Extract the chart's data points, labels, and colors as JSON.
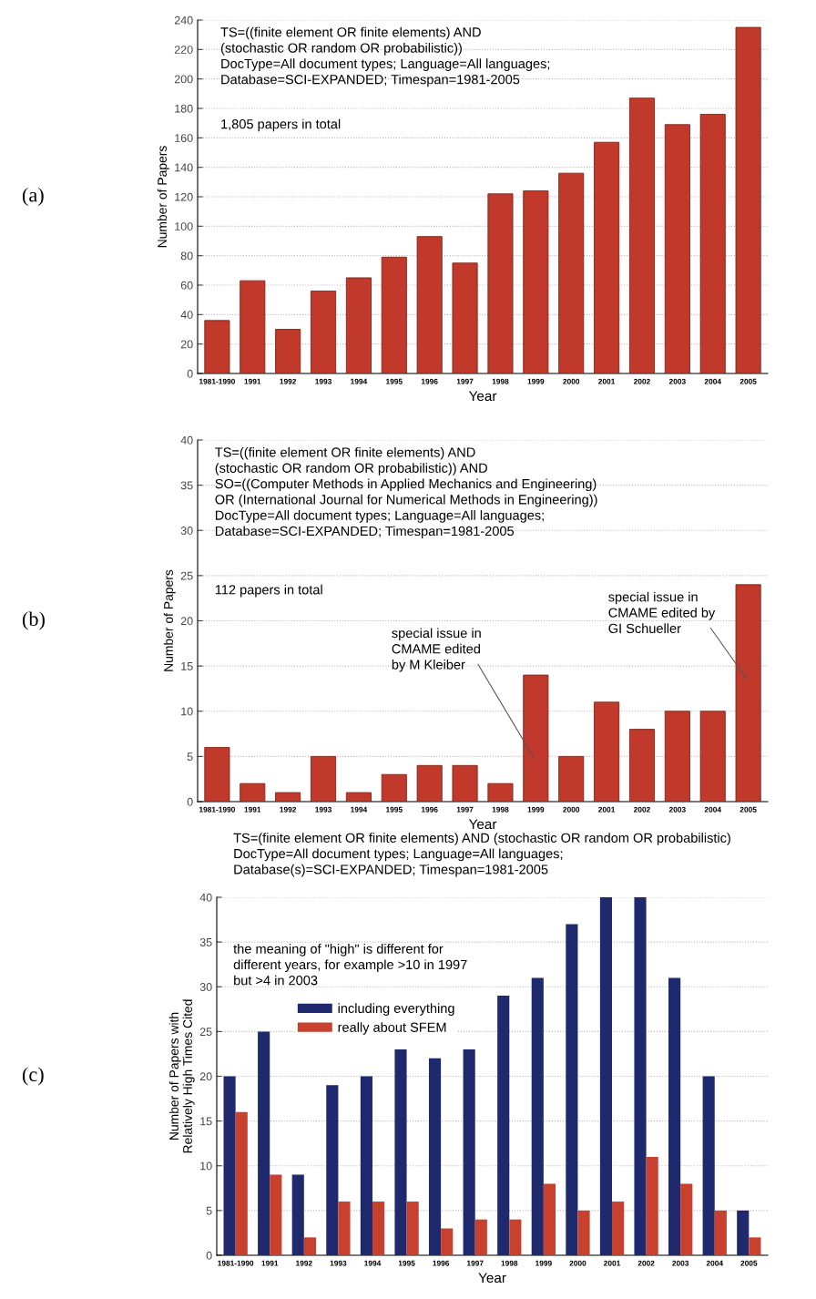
{
  "chart_data": [
    {
      "type": "bar",
      "xlabel": "Year",
      "ylabel": "Number of Papers",
      "categories": [
        "1981-1990",
        "1991",
        "1992",
        "1993",
        "1994",
        "1995",
        "1996",
        "1997",
        "1998",
        "1999",
        "2000",
        "2001",
        "2002",
        "2003",
        "2004",
        "2005"
      ],
      "values": [
        36,
        63,
        30,
        56,
        65,
        79,
        93,
        75,
        122,
        124,
        136,
        157,
        187,
        169,
        176,
        235
      ],
      "color": "#c0392b",
      "ylim": [
        0,
        240
      ],
      "yticks": [
        0,
        20,
        40,
        60,
        80,
        100,
        120,
        140,
        160,
        180,
        200,
        220,
        240
      ],
      "grid": "y",
      "annotations": [
        "(a)",
        "TS=((finite element OR finite elements) AND\n(stochastic OR random OR probabilistic))\nDocType=All document types; Language=All languages;\nDatabase=SCI-EXPANDED; Timespan=1981-2005",
        "1,805 papers in total"
      ]
    },
    {
      "type": "bar",
      "xlabel": "Year",
      "ylabel": "Number of Papers",
      "categories": [
        "1981-1990",
        "1991",
        "1992",
        "1993",
        "1994",
        "1995",
        "1996",
        "1997",
        "1998",
        "1999",
        "2000",
        "2001",
        "2002",
        "2003",
        "2004",
        "2005"
      ],
      "values": [
        6,
        2,
        1,
        5,
        1,
        3,
        4,
        4,
        2,
        14,
        5,
        11,
        8,
        10,
        10,
        24
      ],
      "color": "#c0392b",
      "ylim": [
        0,
        40
      ],
      "yticks": [
        0,
        5,
        10,
        15,
        20,
        25,
        30,
        35,
        40
      ],
      "grid": "y",
      "annotations": [
        "(b)",
        "TS=((finite element OR finite elements) AND\n(stochastic OR random OR probabilistic)) AND\nSO=((Computer Methods in Applied Mechanics and Engineering)\nOR (International Journal for Numerical Methods in Engineering))\nDocType=All document types; Language=All languages;\nDatabase=SCI-EXPANDED; Timespan=1981-2005",
        "112 papers in total",
        "special issue in\nCMAME edited\nby M Kleiber",
        "special issue in\nCMAME edited by\nGI Schueller"
      ]
    },
    {
      "type": "bar",
      "xlabel": "Year",
      "ylabel": "Number of Papers with\nRelatively High Times Cited",
      "categories": [
        "1981-1990",
        "1991",
        "1992",
        "1993",
        "1994",
        "1995",
        "1996",
        "1997",
        "1998",
        "1999",
        "2000",
        "2001",
        "2002",
        "2003",
        "2004",
        "2005"
      ],
      "series": [
        {
          "name": "including everything",
          "color": "#1f2a6e",
          "values": [
            20,
            25,
            9,
            19,
            20,
            23,
            22,
            23,
            29,
            31,
            37,
            40,
            40,
            31,
            20,
            5
          ]
        },
        {
          "name": "really about SFEM",
          "color": "#c8412e",
          "values": [
            16,
            9,
            2,
            6,
            6,
            6,
            3,
            4,
            4,
            8,
            5,
            6,
            11,
            8,
            5,
            2
          ]
        }
      ],
      "ylim": [
        0,
        40
      ],
      "yticks": [
        0,
        5,
        10,
        15,
        20,
        25,
        30,
        35,
        40
      ],
      "grid": "y",
      "legend": "top left",
      "annotations": [
        "(c)",
        "TS=(finite element OR finite elements) AND (stochastic OR random OR probabilistic)\nDocType=All document types; Language=All languages;\nDatabase(s)=SCI-EXPANDED; Timespan=1981-2005",
        "the meaning of \"high\" is different for\ndifferent years, for example >10 in 1997\nbut >4 in 2003"
      ]
    }
  ]
}
